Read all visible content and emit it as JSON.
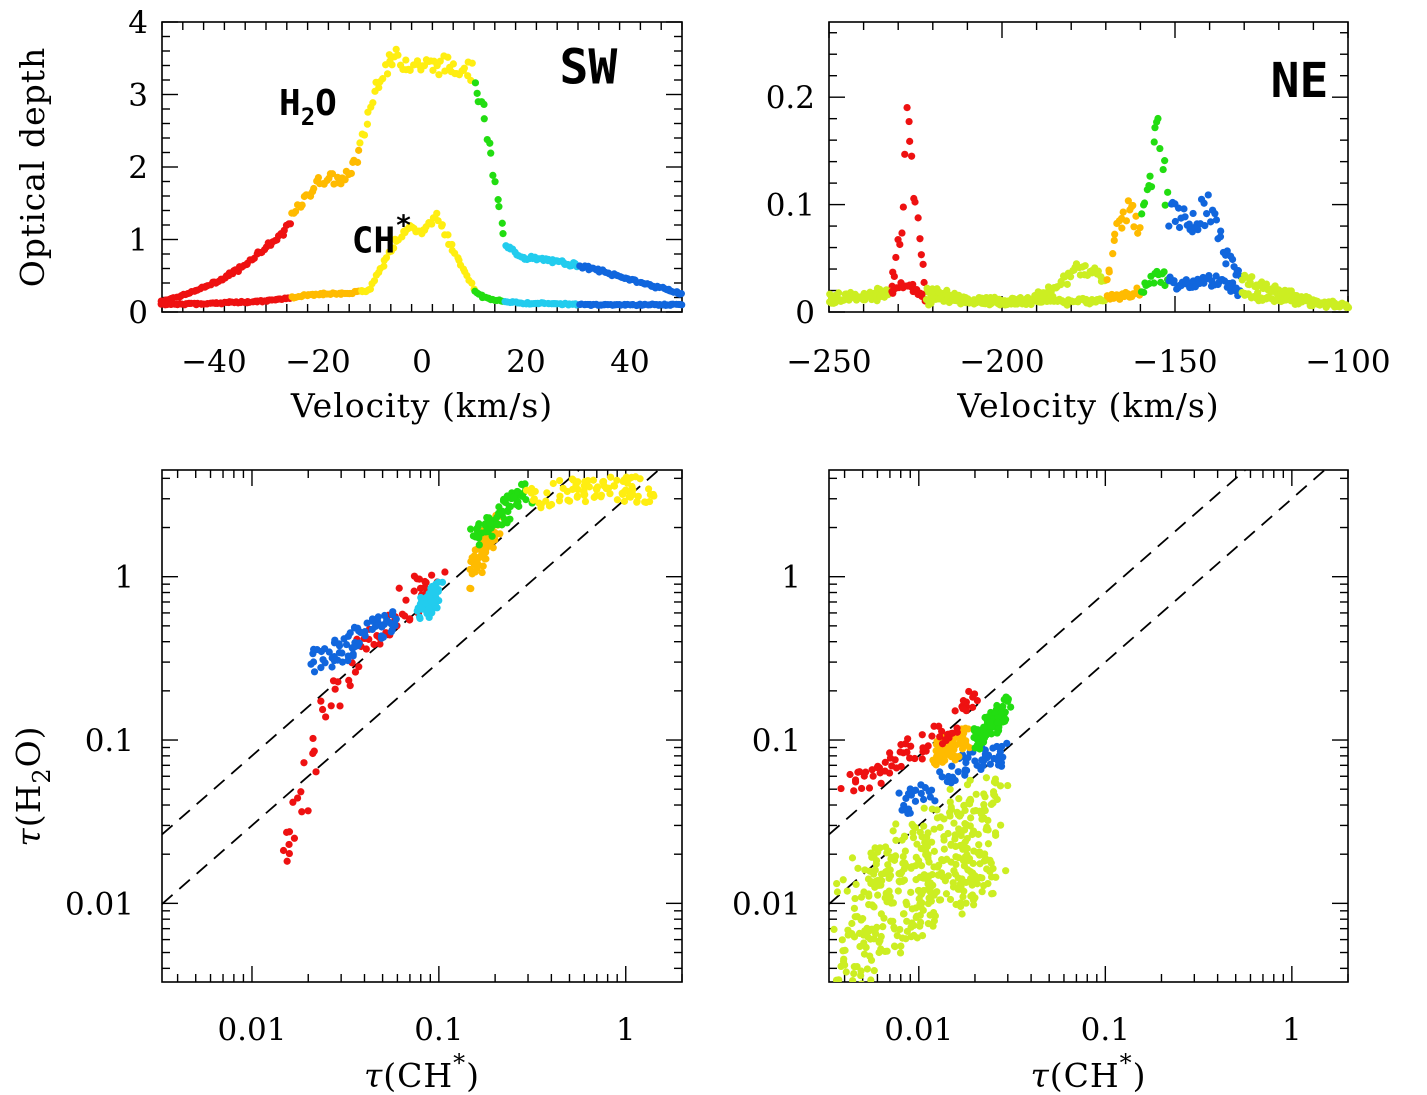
{
  "colors": {
    "red": "#ee1111",
    "orange": "#ffbb00",
    "yellow": "#ffee11",
    "green": "#22dd11",
    "cyan": "#22ccee",
    "blue": "#1166dd",
    "lime": "#ccee22"
  },
  "chart_data": [
    {
      "type": "scatter",
      "panel": "SW spectrum",
      "label": "SW",
      "xlabel": "Velocity (km/s)",
      "ylabel": "Optical depth",
      "xlim": [
        -50,
        50
      ],
      "ylim": [
        0,
        4
      ],
      "xticks": [
        -40,
        -20,
        0,
        20,
        40
      ],
      "xtick_labels": [
        "−40",
        "−20",
        "0",
        "20",
        "40"
      ],
      "yticks": [
        0,
        1,
        2,
        3,
        4
      ],
      "ytick_labels": [
        "0",
        "1",
        "2",
        "3",
        "4"
      ],
      "annotations": [
        "H2O",
        "CH*"
      ],
      "series": [
        {
          "name": "H2O",
          "x": [
            -50,
            -45,
            -40,
            -35,
            -30,
            -27,
            -25,
            -22,
            -20,
            -18,
            -15,
            -12,
            -10,
            -8,
            -5,
            0,
            5,
            8,
            10,
            12,
            14,
            16,
            20,
            25,
            30,
            35,
            40,
            45,
            50
          ],
          "y": [
            0.15,
            0.25,
            0.4,
            0.6,
            0.9,
            1.05,
            1.3,
            1.6,
            1.8,
            1.85,
            1.8,
            2.2,
            2.8,
            3.3,
            3.5,
            3.4,
            3.4,
            3.4,
            3.3,
            2.7,
            1.8,
            0.9,
            0.75,
            0.7,
            0.65,
            0.55,
            0.45,
            0.35,
            0.25
          ]
        },
        {
          "name": "CH*",
          "x": [
            -50,
            -40,
            -30,
            -25,
            -20,
            -15,
            -10,
            -8,
            -5,
            -2,
            0,
            3,
            5,
            8,
            10,
            12,
            15,
            20,
            25,
            30,
            40,
            50
          ],
          "y": [
            0.1,
            0.12,
            0.15,
            0.2,
            0.25,
            0.25,
            0.3,
            0.6,
            1.0,
            1.15,
            1.1,
            1.35,
            1.0,
            0.6,
            0.3,
            0.2,
            0.15,
            0.12,
            0.12,
            0.1,
            0.1,
            0.1
          ]
        }
      ]
    },
    {
      "type": "scatter",
      "panel": "NE spectrum",
      "label": "NE",
      "xlabel": "Velocity (km/s)",
      "ylabel": "",
      "xlim": [
        -250,
        -100
      ],
      "ylim": [
        0,
        0.27
      ],
      "xticks": [
        -250,
        -200,
        -150,
        -100
      ],
      "xtick_labels": [
        "−250",
        "−200",
        "−150",
        "−100"
      ],
      "yticks": [
        0,
        0.1,
        0.2
      ],
      "ytick_labels": [
        "0",
        "0.1",
        "0.2"
      ],
      "series": [
        {
          "name": "H2O",
          "x": [
            -250,
            -240,
            -232,
            -229,
            -227,
            -225,
            -222,
            -215,
            -205,
            -195,
            -185,
            -178,
            -170,
            -165,
            -163,
            -160,
            -157,
            -155,
            -152,
            -148,
            -145,
            -140,
            -135,
            -130,
            -120,
            -110,
            -100
          ],
          "y": [
            0.015,
            0.015,
            0.02,
            0.08,
            0.21,
            0.1,
            0.02,
            0.015,
            0.01,
            0.01,
            0.02,
            0.04,
            0.03,
            0.09,
            0.11,
            0.08,
            0.13,
            0.17,
            0.1,
            0.09,
            0.08,
            0.1,
            0.05,
            0.03,
            0.02,
            0.01,
            0.005
          ]
        },
        {
          "name": "CH*",
          "x": [
            -250,
            -235,
            -228,
            -225,
            -222,
            -210,
            -190,
            -175,
            -165,
            -160,
            -155,
            -150,
            -145,
            -140,
            -135,
            -130,
            -115,
            -100
          ],
          "y": [
            0.01,
            0.015,
            0.025,
            0.02,
            0.01,
            0.01,
            0.01,
            0.01,
            0.015,
            0.02,
            0.035,
            0.025,
            0.025,
            0.03,
            0.025,
            0.015,
            0.01,
            0.005
          ]
        }
      ]
    },
    {
      "type": "scatter",
      "panel": "SW correlation",
      "xlabel": "τ(CH*)",
      "ylabel": "τ(H2O)",
      "xscale": "log",
      "yscale": "log",
      "xlim": [
        0.0033,
        2.0
      ],
      "ylim": [
        0.0033,
        4.5
      ],
      "xtick_labels": [
        "0.01",
        "0.1",
        "1"
      ],
      "ytick_labels": [
        "0.01",
        "0.1",
        "1"
      ],
      "reference_lines": [
        {
          "ratio": 8
        },
        {
          "ratio": 3
        }
      ],
      "series": [
        {
          "name": "red",
          "x": [
            0.015,
            0.017,
            0.02,
            0.022,
            0.025,
            0.03,
            0.035,
            0.045,
            0.06,
            0.08,
            0.1
          ],
          "y": [
            0.016,
            0.03,
            0.06,
            0.1,
            0.15,
            0.2,
            0.3,
            0.4,
            0.6,
            0.8,
            1.0
          ]
        },
        {
          "name": "blue",
          "x": [
            0.02,
            0.03,
            0.04,
            0.05,
            0.06
          ],
          "y": [
            0.3,
            0.35,
            0.45,
            0.5,
            0.55
          ]
        },
        {
          "name": "cyan",
          "x": [
            0.08,
            0.09,
            0.1
          ],
          "y": [
            0.6,
            0.7,
            0.8
          ]
        },
        {
          "name": "orange",
          "x": [
            0.15,
            0.18,
            0.2,
            0.22
          ],
          "y": [
            1.0,
            1.6,
            2.0,
            2.5
          ]
        },
        {
          "name": "green",
          "x": [
            0.15,
            0.2,
            0.25,
            0.3
          ],
          "y": [
            1.6,
            2.2,
            2.8,
            3.2
          ]
        },
        {
          "name": "yellow",
          "x": [
            0.3,
            0.5,
            0.8,
            1.2,
            1.4
          ],
          "y": [
            3.0,
            3.4,
            3.5,
            3.4,
            3.3
          ]
        }
      ]
    },
    {
      "type": "scatter",
      "panel": "NE correlation",
      "xlabel": "τ(CH*)",
      "ylabel": "",
      "xscale": "log",
      "yscale": "log",
      "xlim": [
        0.0033,
        2.0
      ],
      "ylim": [
        0.0033,
        4.5
      ],
      "xtick_labels": [
        "0.01",
        "0.1",
        "1"
      ],
      "ytick_labels": [
        "0.01",
        "0.1",
        "1"
      ],
      "reference_lines": [
        {
          "ratio": 8
        },
        {
          "ratio": 3
        }
      ],
      "series": [
        {
          "name": "lime",
          "x": [
            0.004,
            0.006,
            0.008,
            0.01,
            0.015,
            0.02,
            0.025
          ],
          "y": [
            0.006,
            0.01,
            0.012,
            0.015,
            0.02,
            0.025,
            0.03
          ]
        },
        {
          "name": "blue",
          "x": [
            0.008,
            0.012,
            0.018,
            0.025,
            0.03
          ],
          "y": [
            0.04,
            0.05,
            0.07,
            0.08,
            0.08
          ]
        },
        {
          "name": "orange",
          "x": [
            0.012,
            0.015,
            0.018
          ],
          "y": [
            0.08,
            0.09,
            0.1
          ]
        },
        {
          "name": "red",
          "x": [
            0.004,
            0.008,
            0.012,
            0.016,
            0.02
          ],
          "y": [
            0.05,
            0.08,
            0.1,
            0.13,
            0.18
          ]
        },
        {
          "name": "green",
          "x": [
            0.02,
            0.025,
            0.03
          ],
          "y": [
            0.1,
            0.13,
            0.16
          ]
        }
      ]
    }
  ]
}
